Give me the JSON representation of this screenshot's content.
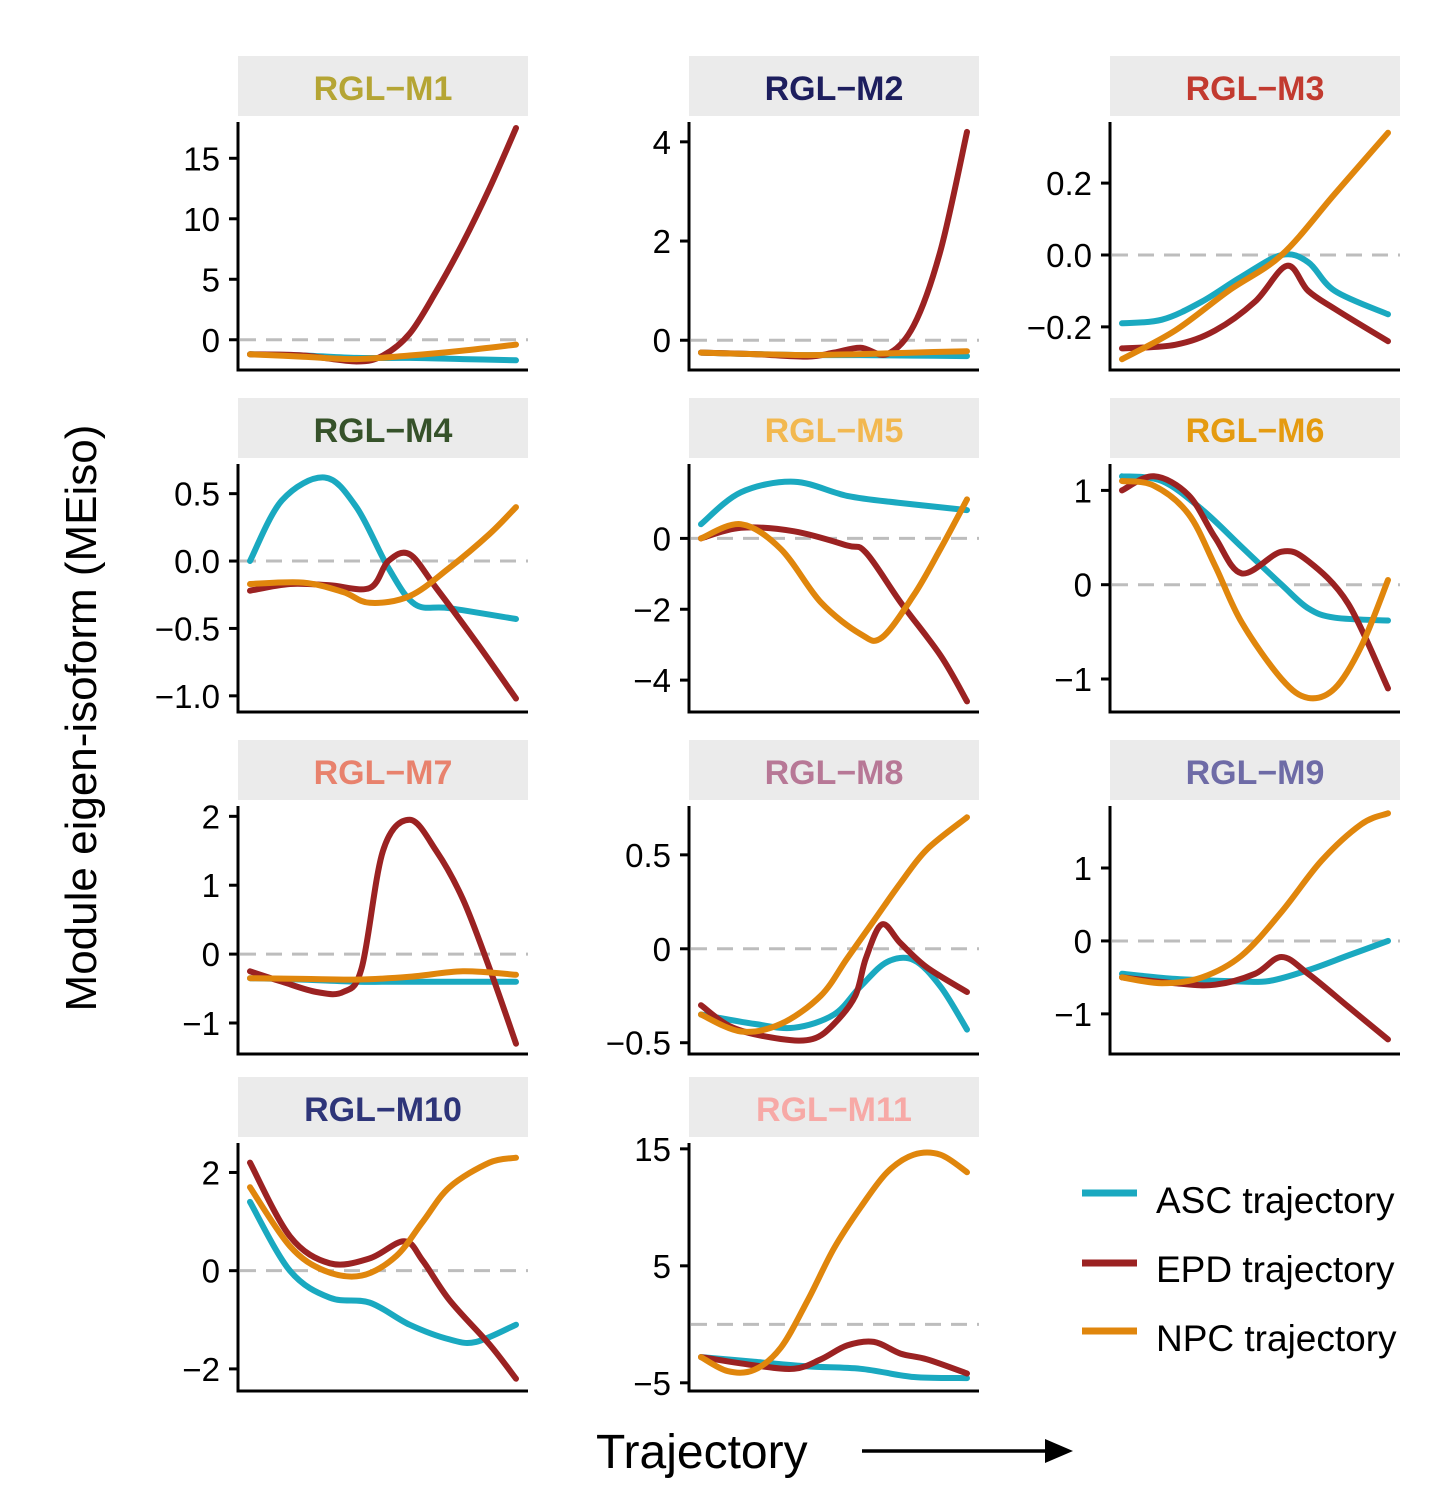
{
  "xlabel": "Trajectory",
  "ylabel": "Module eigen-isoform (MEiso)",
  "legend": [
    {
      "name": "ASC trajectory",
      "color": "#1aa9c0"
    },
    {
      "name": "EPD trajectory",
      "color": "#9b2222"
    },
    {
      "name": "NPC trajectory",
      "color": "#e0860c"
    }
  ],
  "chart_data": [
    {
      "type": "line",
      "title": "RGL−M1",
      "title_color": "#b5a534",
      "ylim": [
        -2.5,
        18
      ],
      "yticks": [
        0,
        5,
        10,
        15
      ],
      "tick_labels": [
        "0",
        "5",
        "10",
        "15"
      ],
      "series": [
        {
          "name": "ASC trajectory",
          "x": [
            0,
            0.2,
            0.4,
            0.6,
            0.8,
            1.0
          ],
          "values": [
            -1.2,
            -1.3,
            -1.5,
            -1.5,
            -1.6,
            -1.7
          ]
        },
        {
          "name": "EPD trajectory",
          "x": [
            0,
            0.2,
            0.4,
            0.5,
            0.6,
            0.7,
            0.8,
            0.9,
            1.0
          ],
          "values": [
            -1.2,
            -1.3,
            -1.8,
            -1.3,
            0.5,
            4.0,
            8.0,
            12.5,
            17.5
          ]
        },
        {
          "name": "NPC trajectory",
          "x": [
            0,
            0.2,
            0.4,
            0.6,
            0.8,
            1.0
          ],
          "values": [
            -1.2,
            -1.4,
            -1.6,
            -1.3,
            -0.9,
            -0.4
          ]
        }
      ]
    },
    {
      "type": "line",
      "title": "RGL−M2",
      "title_color": "#1d1e5e",
      "ylim": [
        -0.6,
        4.4
      ],
      "yticks": [
        0,
        2,
        4
      ],
      "tick_labels": [
        "0",
        "2",
        "4"
      ],
      "series": [
        {
          "name": "ASC trajectory",
          "x": [
            0,
            0.2,
            0.4,
            0.6,
            0.8,
            1.0
          ],
          "values": [
            -0.25,
            -0.28,
            -0.3,
            -0.3,
            -0.31,
            -0.32
          ]
        },
        {
          "name": "EPD trajectory",
          "x": [
            0,
            0.2,
            0.4,
            0.5,
            0.6,
            0.7,
            0.8,
            0.9,
            1.0
          ],
          "values": [
            -0.25,
            -0.28,
            -0.33,
            -0.25,
            -0.15,
            -0.28,
            0.3,
            1.8,
            4.2
          ]
        },
        {
          "name": "NPC trajectory",
          "x": [
            0,
            0.2,
            0.4,
            0.6,
            0.8,
            1.0
          ],
          "values": [
            -0.25,
            -0.28,
            -0.3,
            -0.28,
            -0.25,
            -0.22
          ]
        }
      ]
    },
    {
      "type": "line",
      "title": "RGL−M3",
      "title_color": "#c23a2f",
      "ylim": [
        -0.32,
        0.37
      ],
      "yticks": [
        -0.2,
        0.0,
        0.2
      ],
      "tick_labels": [
        "−0.2",
        "0.0",
        "0.2"
      ],
      "series": [
        {
          "name": "ASC trajectory",
          "x": [
            0,
            0.15,
            0.3,
            0.45,
            0.6,
            0.7,
            0.8,
            1.0
          ],
          "values": [
            -0.19,
            -0.18,
            -0.13,
            -0.06,
            0.0,
            -0.02,
            -0.1,
            -0.165
          ]
        },
        {
          "name": "EPD trajectory",
          "x": [
            0,
            0.2,
            0.35,
            0.5,
            0.62,
            0.7,
            0.8,
            1.0
          ],
          "values": [
            -0.26,
            -0.25,
            -0.21,
            -0.13,
            -0.03,
            -0.1,
            -0.15,
            -0.24
          ]
        },
        {
          "name": "NPC trajectory",
          "x": [
            0,
            0.2,
            0.4,
            0.6,
            0.8,
            1.0
          ],
          "values": [
            -0.29,
            -0.21,
            -0.1,
            0.0,
            0.17,
            0.34
          ]
        }
      ]
    },
    {
      "type": "line",
      "title": "RGL−M4",
      "title_color": "#36522a",
      "ylim": [
        -1.12,
        0.72
      ],
      "yticks": [
        -1.0,
        -0.5,
        0.0,
        0.5
      ],
      "tick_labels": [
        "−1.0",
        "−0.5",
        "0.0",
        "0.5"
      ],
      "series": [
        {
          "name": "ASC trajectory",
          "x": [
            0,
            0.12,
            0.28,
            0.4,
            0.52,
            0.62,
            0.75,
            1.0
          ],
          "values": [
            0.0,
            0.45,
            0.62,
            0.4,
            -0.05,
            -0.32,
            -0.35,
            -0.43
          ]
        },
        {
          "name": "EPD trajectory",
          "x": [
            0,
            0.15,
            0.3,
            0.45,
            0.52,
            0.6,
            0.7,
            0.85,
            1.0
          ],
          "values": [
            -0.22,
            -0.17,
            -0.18,
            -0.2,
            0.0,
            0.05,
            -0.2,
            -0.6,
            -1.02
          ]
        },
        {
          "name": "NPC trajectory",
          "x": [
            0,
            0.2,
            0.35,
            0.45,
            0.6,
            0.75,
            0.9,
            1.0
          ],
          "values": [
            -0.17,
            -0.16,
            -0.23,
            -0.31,
            -0.26,
            -0.05,
            0.2,
            0.4
          ]
        }
      ]
    },
    {
      "type": "line",
      "title": "RGL−M5",
      "title_color": "#f2b850",
      "ylim": [
        -4.9,
        2.1
      ],
      "yticks": [
        -4,
        -2,
        0
      ],
      "tick_labels": [
        "−4",
        "−2",
        "0"
      ],
      "series": [
        {
          "name": "ASC trajectory",
          "x": [
            0,
            0.15,
            0.35,
            0.55,
            0.75,
            1.0
          ],
          "values": [
            0.4,
            1.3,
            1.6,
            1.2,
            1.0,
            0.8
          ]
        },
        {
          "name": "EPD trajectory",
          "x": [
            0,
            0.15,
            0.35,
            0.55,
            0.62,
            0.75,
            0.9,
            1.0
          ],
          "values": [
            0.0,
            0.3,
            0.2,
            -0.2,
            -0.4,
            -1.8,
            -3.3,
            -4.6
          ]
        },
        {
          "name": "NPC trajectory",
          "x": [
            0,
            0.15,
            0.3,
            0.45,
            0.6,
            0.68,
            0.8,
            0.9,
            1.0
          ],
          "values": [
            0.0,
            0.4,
            -0.3,
            -1.8,
            -2.7,
            -2.8,
            -1.6,
            -0.3,
            1.1
          ]
        }
      ]
    },
    {
      "type": "line",
      "title": "RGL−M6",
      "title_color": "#e59b10",
      "ylim": [
        -1.35,
        1.28
      ],
      "yticks": [
        -1,
        0,
        1
      ],
      "tick_labels": [
        "−1",
        "0",
        "1"
      ],
      "series": [
        {
          "name": "ASC trajectory",
          "x": [
            0,
            0.15,
            0.3,
            0.45,
            0.6,
            0.7,
            0.8,
            1.0
          ],
          "values": [
            1.15,
            1.1,
            0.8,
            0.4,
            0.0,
            -0.25,
            -0.35,
            -0.38
          ]
        },
        {
          "name": "EPD trajectory",
          "x": [
            0,
            0.12,
            0.25,
            0.35,
            0.45,
            0.6,
            0.7,
            0.85,
            1.0
          ],
          "values": [
            1.0,
            1.15,
            0.95,
            0.5,
            0.12,
            0.35,
            0.25,
            -0.2,
            -1.1
          ]
        },
        {
          "name": "NPC trajectory",
          "x": [
            0,
            0.12,
            0.25,
            0.35,
            0.45,
            0.6,
            0.7,
            0.8,
            0.9,
            1.0
          ],
          "values": [
            1.1,
            1.05,
            0.75,
            0.2,
            -0.4,
            -1.0,
            -1.2,
            -1.1,
            -0.65,
            0.05
          ]
        }
      ]
    },
    {
      "type": "line",
      "title": "RGL−M7",
      "title_color": "#e8826d",
      "ylim": [
        -1.45,
        2.15
      ],
      "yticks": [
        -1,
        0,
        1,
        2
      ],
      "tick_labels": [
        "−1",
        "0",
        "1",
        "2"
      ],
      "series": [
        {
          "name": "ASC trajectory",
          "x": [
            0,
            0.2,
            0.4,
            0.6,
            0.8,
            1.0
          ],
          "values": [
            -0.35,
            -0.37,
            -0.4,
            -0.4,
            -0.4,
            -0.4
          ]
        },
        {
          "name": "EPD trajectory",
          "x": [
            0,
            0.12,
            0.25,
            0.35,
            0.42,
            0.5,
            0.6,
            0.7,
            0.8,
            0.9,
            1.0
          ],
          "values": [
            -0.25,
            -0.4,
            -0.55,
            -0.55,
            -0.2,
            1.5,
            1.95,
            1.5,
            0.8,
            -0.2,
            -1.3
          ]
        },
        {
          "name": "NPC trajectory",
          "x": [
            0,
            0.2,
            0.4,
            0.6,
            0.8,
            1.0
          ],
          "values": [
            -0.35,
            -0.36,
            -0.37,
            -0.33,
            -0.25,
            -0.3
          ]
        }
      ]
    },
    {
      "type": "line",
      "title": "RGL−M8",
      "title_color": "#b77896",
      "ylim": [
        -0.56,
        0.76
      ],
      "yticks": [
        -0.5,
        0,
        0.5
      ],
      "tick_labels": [
        "−0.5",
        "0",
        "0.5"
      ],
      "series": [
        {
          "name": "ASC trajectory",
          "x": [
            0,
            0.2,
            0.35,
            0.5,
            0.6,
            0.7,
            0.8,
            0.9,
            1.0
          ],
          "values": [
            -0.35,
            -0.4,
            -0.42,
            -0.35,
            -0.2,
            -0.07,
            -0.06,
            -0.2,
            -0.43
          ]
        },
        {
          "name": "EPD trajectory",
          "x": [
            0,
            0.12,
            0.3,
            0.42,
            0.5,
            0.58,
            0.62,
            0.68,
            0.75,
            0.85,
            1.0
          ],
          "values": [
            -0.3,
            -0.42,
            -0.48,
            -0.48,
            -0.4,
            -0.25,
            -0.05,
            0.13,
            0.03,
            -0.1,
            -0.23
          ]
        },
        {
          "name": "NPC trajectory",
          "x": [
            0,
            0.15,
            0.3,
            0.45,
            0.55,
            0.65,
            0.75,
            0.85,
            1.0
          ],
          "values": [
            -0.35,
            -0.44,
            -0.4,
            -0.25,
            -0.05,
            0.15,
            0.35,
            0.53,
            0.7
          ]
        }
      ]
    },
    {
      "type": "line",
      "title": "RGL−M9",
      "title_color": "#6e6ba6",
      "ylim": [
        -1.55,
        1.85
      ],
      "yticks": [
        -1,
        0,
        1
      ],
      "tick_labels": [
        "−1",
        "0",
        "1"
      ],
      "series": [
        {
          "name": "ASC trajectory",
          "x": [
            0,
            0.2,
            0.4,
            0.55,
            0.7,
            0.85,
            1.0
          ],
          "values": [
            -0.45,
            -0.52,
            -0.55,
            -0.55,
            -0.4,
            -0.2,
            0.0
          ]
        },
        {
          "name": "EPD trajectory",
          "x": [
            0,
            0.2,
            0.35,
            0.5,
            0.6,
            0.7,
            0.85,
            1.0
          ],
          "values": [
            -0.5,
            -0.58,
            -0.6,
            -0.45,
            -0.22,
            -0.45,
            -0.9,
            -1.35
          ]
        },
        {
          "name": "NPC trajectory",
          "x": [
            0,
            0.15,
            0.3,
            0.45,
            0.6,
            0.75,
            0.9,
            1.0
          ],
          "values": [
            -0.5,
            -0.58,
            -0.5,
            -0.2,
            0.4,
            1.1,
            1.6,
            1.75
          ]
        }
      ]
    },
    {
      "type": "line",
      "title": "RGL−M10",
      "title_color": "#2e3579",
      "ylim": [
        -2.45,
        2.6
      ],
      "yticks": [
        -2,
        0,
        2
      ],
      "tick_labels": [
        "−2",
        "0",
        "2"
      ],
      "series": [
        {
          "name": "ASC trajectory",
          "x": [
            0,
            0.15,
            0.3,
            0.45,
            0.6,
            0.75,
            0.85,
            1.0
          ],
          "values": [
            1.4,
            0.0,
            -0.55,
            -0.65,
            -1.1,
            -1.4,
            -1.45,
            -1.1
          ]
        },
        {
          "name": "EPD trajectory",
          "x": [
            0,
            0.15,
            0.3,
            0.45,
            0.58,
            0.65,
            0.75,
            0.9,
            1.0
          ],
          "values": [
            2.2,
            0.7,
            0.15,
            0.25,
            0.6,
            0.2,
            -0.6,
            -1.5,
            -2.2
          ]
        },
        {
          "name": "NPC trajectory",
          "x": [
            0,
            0.15,
            0.28,
            0.42,
            0.55,
            0.65,
            0.75,
            0.9,
            1.0
          ],
          "values": [
            1.7,
            0.5,
            0.0,
            -0.1,
            0.3,
            1.0,
            1.7,
            2.2,
            2.3
          ]
        }
      ]
    },
    {
      "type": "line",
      "title": "RGL−M11",
      "title_color": "#f7a9a6",
      "ylim": [
        -5.7,
        15.5
      ],
      "yticks": [
        -5,
        5,
        15
      ],
      "tick_labels": [
        "−5",
        "5",
        "15"
      ],
      "series": [
        {
          "name": "ASC trajectory",
          "x": [
            0,
            0.2,
            0.4,
            0.6,
            0.8,
            1.0
          ],
          "values": [
            -2.8,
            -3.2,
            -3.6,
            -3.8,
            -4.5,
            -4.6
          ]
        },
        {
          "name": "EPD trajectory",
          "x": [
            0,
            0.2,
            0.35,
            0.45,
            0.55,
            0.65,
            0.75,
            0.85,
            1.0
          ],
          "values": [
            -2.8,
            -3.5,
            -3.8,
            -3.0,
            -1.8,
            -1.5,
            -2.5,
            -3.0,
            -4.2
          ]
        },
        {
          "name": "NPC trajectory",
          "x": [
            0,
            0.1,
            0.2,
            0.3,
            0.4,
            0.5,
            0.6,
            0.7,
            0.8,
            0.9,
            1.0
          ],
          "values": [
            -2.8,
            -4.0,
            -3.9,
            -2.0,
            2.0,
            6.5,
            10.0,
            13.0,
            14.5,
            14.5,
            13.0
          ]
        }
      ]
    }
  ]
}
